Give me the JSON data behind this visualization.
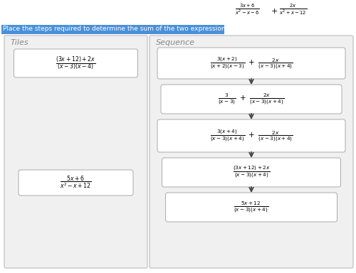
{
  "instruction": "Place the steps required to determine the sum of the two expressions in the correct order.",
  "instruction_bg": "#4a90d9",
  "instruction_color": "white",
  "tiles_title": "Tiles",
  "sequence_title": "Sequence",
  "bg_color": "white",
  "box_color": "white",
  "box_edge": "#aaaaaa",
  "outer_box_edge": "#bbbbbb",
  "arrow_color": "#444444",
  "outer_box_fill": "#f0f0f0",
  "title_color": "#333333"
}
